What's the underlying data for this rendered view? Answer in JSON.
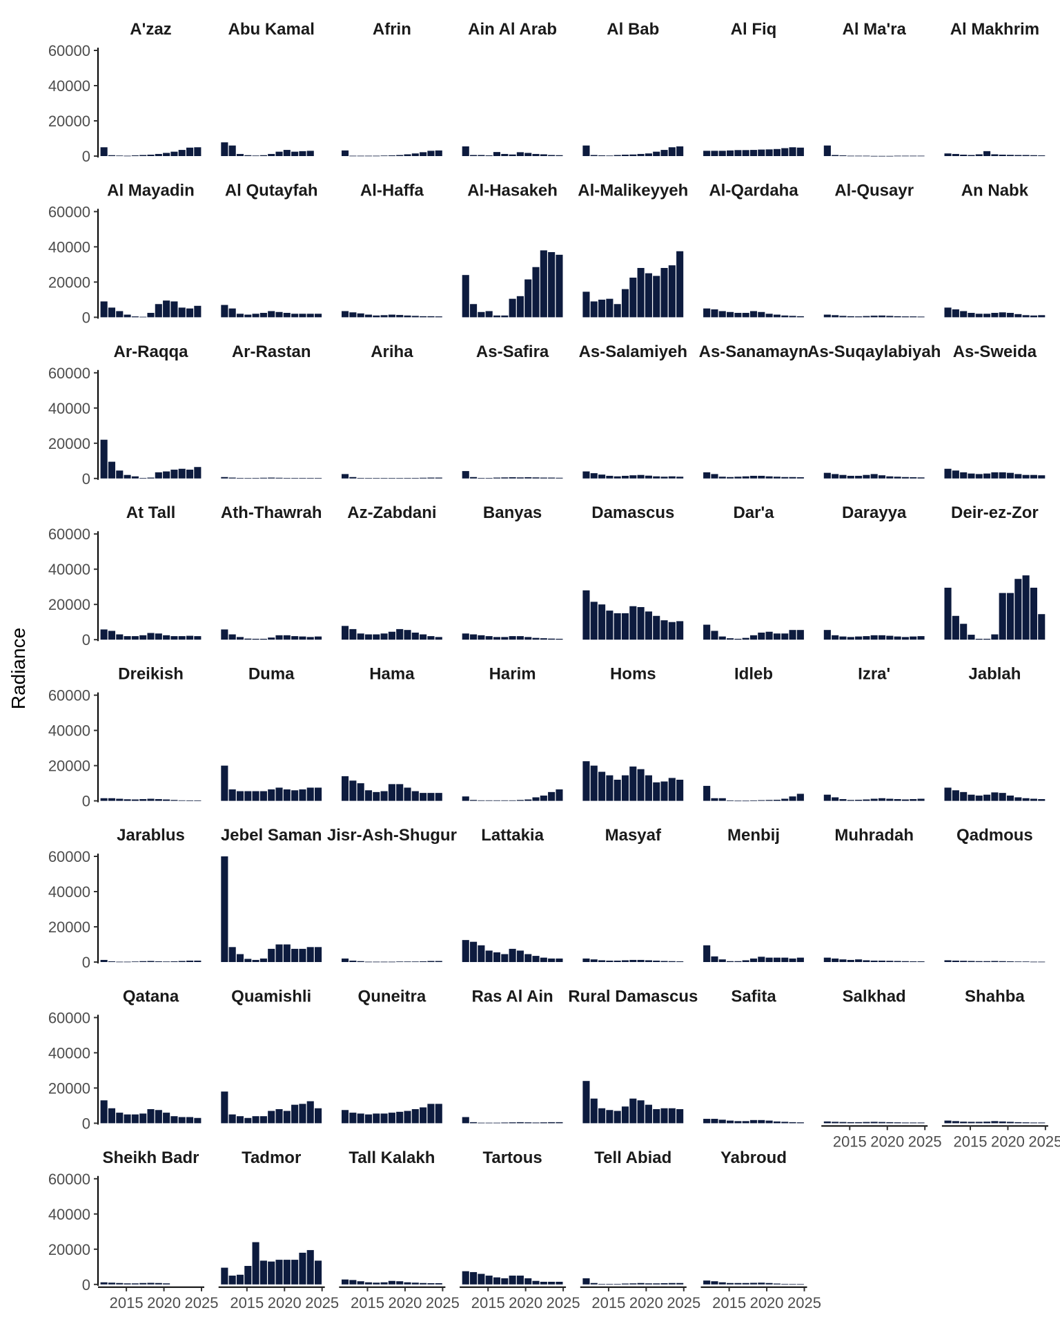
{
  "chart_data": {
    "type": "bar",
    "facet": "wrap",
    "ylabel": "Radiance",
    "xlabel": "",
    "ylim": [
      0,
      60000
    ],
    "y_ticks": [
      0,
      20000,
      40000,
      60000
    ],
    "y_tick_labels": [
      "0",
      "20000",
      "40000",
      "60000"
    ],
    "xlim": [
      2011.5,
      2025
    ],
    "x_ticks": [
      2015,
      2020,
      2025
    ],
    "x_tick_labels": [
      "2015",
      "2020",
      "2025"
    ],
    "years": [
      2012,
      2013,
      2014,
      2015,
      2016,
      2017,
      2018,
      2019,
      2020,
      2021,
      2022,
      2023,
      2024
    ],
    "bar_color": "#0d1b3e",
    "grid": false,
    "legend": "none",
    "panels": [
      {
        "name": "A'zaz",
        "values": [
          5000,
          500,
          300,
          200,
          400,
          600,
          800,
          1200,
          1800,
          2500,
          3500,
          4800,
          5000
        ]
      },
      {
        "name": "Abu Kamal",
        "values": [
          7800,
          6000,
          1200,
          500,
          300,
          500,
          1200,
          2500,
          3500,
          2500,
          2800,
          3000,
          0
        ]
      },
      {
        "name": "Afrin",
        "values": [
          3200,
          200,
          200,
          200,
          200,
          300,
          400,
          600,
          1000,
          1500,
          2200,
          3000,
          3200
        ]
      },
      {
        "name": "Ain Al Arab",
        "values": [
          5500,
          600,
          600,
          400,
          2300,
          1200,
          900,
          2200,
          1800,
          1200,
          1000,
          600,
          500
        ]
      },
      {
        "name": "Al Bab",
        "values": [
          6000,
          600,
          400,
          300,
          600,
          800,
          900,
          1200,
          1500,
          2500,
          3500,
          5000,
          5500
        ]
      },
      {
        "name": "Al Fiq",
        "values": [
          3000,
          3000,
          3000,
          3200,
          3400,
          3400,
          3500,
          3700,
          3800,
          4000,
          4500,
          5000,
          4800
        ]
      },
      {
        "name": "Al Ma'ra",
        "values": [
          6000,
          600,
          400,
          200,
          200,
          200,
          100,
          100,
          100,
          200,
          200,
          200,
          200
        ]
      },
      {
        "name": "Al Makhrim",
        "values": [
          1500,
          1200,
          800,
          600,
          1000,
          2800,
          1000,
          800,
          700,
          600,
          600,
          500,
          400
        ]
      },
      {
        "name": "Al Mayadin",
        "values": [
          9000,
          5500,
          3500,
          1500,
          500,
          300,
          2500,
          7500,
          9500,
          9000,
          5500,
          5000,
          6500
        ]
      },
      {
        "name": "Al Qutayfah",
        "values": [
          7000,
          5000,
          2000,
          1500,
          2000,
          2500,
          3500,
          3000,
          2500,
          2000,
          2000,
          2000,
          2000
        ]
      },
      {
        "name": "Al-Haffa",
        "values": [
          3500,
          2800,
          2200,
          1500,
          1000,
          1200,
          1500,
          1300,
          1000,
          800,
          600,
          600,
          500
        ]
      },
      {
        "name": "Al-Hasakeh",
        "values": [
          24000,
          7500,
          3000,
          3500,
          1000,
          1000,
          10500,
          12000,
          21500,
          28500,
          38000,
          37000,
          35500
        ]
      },
      {
        "name": "Al-Malikeyyeh",
        "values": [
          14500,
          9000,
          10000,
          10500,
          7500,
          16000,
          22500,
          28000,
          25000,
          23500,
          28000,
          29500,
          37500
        ]
      },
      {
        "name": "Al-Qardaha",
        "values": [
          5000,
          4500,
          3500,
          3000,
          2500,
          2500,
          3500,
          3000,
          2000,
          1500,
          1000,
          800,
          600
        ]
      },
      {
        "name": "Al-Qusayr",
        "values": [
          1500,
          1200,
          800,
          600,
          500,
          700,
          900,
          1000,
          800,
          600,
          500,
          500,
          400
        ]
      },
      {
        "name": "An Nabk",
        "values": [
          5500,
          4500,
          3500,
          2500,
          2000,
          2000,
          2500,
          2800,
          2500,
          1800,
          1200,
          1000,
          1200
        ]
      },
      {
        "name": "Ar-Raqqa",
        "values": [
          22000,
          9500,
          4500,
          2000,
          1200,
          300,
          500,
          3500,
          4000,
          5000,
          5500,
          5000,
          6500
        ]
      },
      {
        "name": "Ar-Rastan",
        "values": [
          800,
          500,
          300,
          200,
          300,
          400,
          500,
          400,
          300,
          300,
          300,
          300,
          300
        ]
      },
      {
        "name": "Ariha",
        "values": [
          2500,
          800,
          300,
          200,
          200,
          200,
          200,
          200,
          300,
          300,
          400,
          500,
          500
        ]
      },
      {
        "name": "As-Safira",
        "values": [
          4200,
          800,
          300,
          300,
          500,
          600,
          700,
          600,
          700,
          600,
          500,
          500,
          400
        ]
      },
      {
        "name": "As-Salamiyeh",
        "values": [
          4000,
          3000,
          2200,
          1500,
          1200,
          1500,
          1800,
          2000,
          1600,
          1200,
          1000,
          1200,
          1000
        ]
      },
      {
        "name": "As-Sanamayn",
        "values": [
          3500,
          2500,
          1000,
          800,
          1000,
          1200,
          1500,
          1500,
          1200,
          1000,
          800,
          800,
          700
        ]
      },
      {
        "name": "As-Suqaylabiyah",
        "values": [
          3200,
          2500,
          2000,
          1500,
          1500,
          2000,
          2500,
          1800,
          1200,
          1000,
          800,
          700,
          600
        ]
      },
      {
        "name": "As-Sweida",
        "values": [
          5500,
          4500,
          3500,
          2800,
          2500,
          2800,
          3500,
          3500,
          3200,
          2500,
          2000,
          2000,
          1800
        ]
      },
      {
        "name": "At Tall",
        "values": [
          5800,
          5000,
          3000,
          2000,
          2000,
          2500,
          3800,
          3500,
          2500,
          2000,
          2000,
          2200,
          2000
        ]
      },
      {
        "name": "Ath-Thawrah",
        "values": [
          5800,
          3000,
          1500,
          600,
          500,
          500,
          1200,
          2500,
          2500,
          2000,
          1800,
          1500,
          1800
        ]
      },
      {
        "name": "Az-Zabdani",
        "values": [
          7800,
          6000,
          3500,
          3000,
          3000,
          3500,
          4500,
          6000,
          5500,
          4000,
          3000,
          2000,
          1500
        ]
      },
      {
        "name": "Banyas",
        "values": [
          3500,
          3000,
          2500,
          2000,
          1500,
          1500,
          2000,
          2000,
          1500,
          1000,
          800,
          600,
          500
        ]
      },
      {
        "name": "Damascus",
        "values": [
          28000,
          21500,
          20000,
          16500,
          15000,
          15000,
          19000,
          18500,
          16000,
          13500,
          11000,
          10000,
          10500
        ]
      },
      {
        "name": "Dar'a",
        "values": [
          8500,
          5000,
          1800,
          800,
          500,
          1000,
          2500,
          4000,
          4500,
          3500,
          3500,
          5500,
          5500
        ]
      },
      {
        "name": "Darayya",
        "values": [
          5500,
          2500,
          1800,
          1500,
          1800,
          2000,
          2500,
          2500,
          2200,
          1800,
          1500,
          1800,
          2000
        ]
      },
      {
        "name": "Deir-ez-Zor",
        "values": [
          29500,
          13500,
          9000,
          2800,
          500,
          500,
          3000,
          26500,
          26500,
          34500,
          36500,
          29500,
          14500
        ]
      },
      {
        "name": "Dreikish",
        "values": [
          1500,
          1500,
          1200,
          900,
          800,
          1000,
          1200,
          1000,
          800,
          500,
          300,
          200,
          200
        ]
      },
      {
        "name": "Duma",
        "values": [
          20000,
          6500,
          5500,
          5500,
          5500,
          5500,
          6500,
          7500,
          6500,
          6000,
          6500,
          7500,
          7500
        ]
      },
      {
        "name": "Hama",
        "values": [
          14000,
          11500,
          10000,
          6000,
          5000,
          5500,
          9500,
          9500,
          7500,
          5500,
          4500,
          4500,
          4500
        ]
      },
      {
        "name": "Harim",
        "values": [
          2500,
          500,
          300,
          300,
          300,
          300,
          300,
          500,
          800,
          2000,
          3000,
          5000,
          6500
        ]
      },
      {
        "name": "Homs",
        "values": [
          22500,
          20000,
          16500,
          14500,
          12000,
          14500,
          19500,
          18000,
          14500,
          10500,
          11000,
          13000,
          12000
        ]
      },
      {
        "name": "Idleb",
        "values": [
          8500,
          1500,
          1500,
          200,
          100,
          100,
          200,
          400,
          500,
          600,
          1200,
          2500,
          4000
        ]
      },
      {
        "name": "Izra'",
        "values": [
          3500,
          2000,
          1000,
          500,
          600,
          800,
          1200,
          1500,
          1200,
          1000,
          800,
          1000,
          1200
        ]
      },
      {
        "name": "Jablah",
        "values": [
          7500,
          6000,
          5000,
          3500,
          3000,
          3500,
          4800,
          4500,
          3000,
          2000,
          1500,
          1200,
          1000
        ]
      },
      {
        "name": "Jarablus",
        "values": [
          1200,
          400,
          200,
          200,
          300,
          500,
          600,
          400,
          300,
          400,
          600,
          800,
          800
        ]
      },
      {
        "name": "Jebel Saman",
        "values": [
          60000,
          8500,
          4500,
          1800,
          1200,
          2000,
          7500,
          10000,
          10000,
          7500,
          7500,
          8500,
          8500
        ]
      },
      {
        "name": "Jisr-Ash-Shugur",
        "values": [
          2000,
          800,
          500,
          200,
          200,
          200,
          200,
          300,
          300,
          300,
          400,
          600,
          600
        ]
      },
      {
        "name": "Lattakia",
        "values": [
          12500,
          11500,
          9500,
          6500,
          5500,
          4500,
          7500,
          6500,
          4500,
          3500,
          2500,
          2000,
          2000
        ]
      },
      {
        "name": "Masyaf",
        "values": [
          2000,
          1500,
          1000,
          800,
          800,
          1000,
          1200,
          1200,
          1000,
          800,
          600,
          500,
          400
        ]
      },
      {
        "name": "Menbij",
        "values": [
          9500,
          3200,
          1500,
          500,
          500,
          1000,
          2000,
          3000,
          2500,
          2500,
          2500,
          2000,
          2500
        ]
      },
      {
        "name": "Muhradah",
        "values": [
          2500,
          2000,
          1500,
          1200,
          1500,
          1000,
          800,
          800,
          700,
          600,
          500,
          400,
          400
        ]
      },
      {
        "name": "Qadmous",
        "values": [
          1000,
          800,
          700,
          600,
          500,
          500,
          600,
          500,
          400,
          300,
          300,
          200,
          200
        ]
      },
      {
        "name": "Qatana",
        "values": [
          13000,
          8500,
          6000,
          5000,
          5000,
          5500,
          8000,
          7500,
          6000,
          4000,
          3500,
          3500,
          3000
        ]
      },
      {
        "name": "Quamishli",
        "values": [
          18000,
          5000,
          4000,
          3000,
          4000,
          4000,
          7000,
          8000,
          7000,
          10500,
          11000,
          12500,
          8500
        ]
      },
      {
        "name": "Quneitra",
        "values": [
          7500,
          6000,
          5500,
          5000,
          5500,
          5500,
          6000,
          6500,
          7000,
          8000,
          9000,
          11000,
          11000
        ]
      },
      {
        "name": "Ras Al Ain",
        "values": [
          3500,
          600,
          300,
          300,
          300,
          400,
          500,
          600,
          500,
          400,
          500,
          600,
          600
        ]
      },
      {
        "name": "Rural Damascus",
        "values": [
          24000,
          14000,
          8500,
          7500,
          7000,
          9500,
          14000,
          13000,
          10500,
          8000,
          8500,
          8500,
          8000
        ]
      },
      {
        "name": "Safita",
        "values": [
          2500,
          2500,
          2000,
          1500,
          1200,
          1200,
          1800,
          1800,
          1500,
          1000,
          800,
          600,
          500
        ]
      },
      {
        "name": "Salkhad",
        "values": [
          1000,
          800,
          700,
          600,
          600,
          700,
          800,
          700,
          600,
          500,
          400,
          400,
          400
        ]
      },
      {
        "name": "Shahba",
        "values": [
          1500,
          1200,
          900,
          800,
          800,
          900,
          1200,
          1000,
          800,
          600,
          500,
          400,
          400
        ]
      },
      {
        "name": "Sheikh Badr",
        "values": [
          1200,
          1000,
          800,
          600,
          600,
          800,
          900,
          800,
          600,
          0,
          0,
          0,
          0
        ]
      },
      {
        "name": "Tadmor",
        "values": [
          9500,
          5000,
          5500,
          10500,
          24000,
          13500,
          13000,
          14000,
          14000,
          14000,
          18000,
          19500,
          13500
        ]
      },
      {
        "name": "Tall Kalakh",
        "values": [
          2800,
          2500,
          1800,
          1200,
          1000,
          1200,
          2000,
          1800,
          1200,
          1000,
          800,
          700,
          700
        ]
      },
      {
        "name": "Tartous",
        "values": [
          7500,
          7000,
          6000,
          5000,
          4000,
          3500,
          5000,
          5000,
          3500,
          2000,
          1500,
          1500,
          1500
        ]
      },
      {
        "name": "Tell Abiad",
        "values": [
          3500,
          800,
          300,
          300,
          300,
          500,
          600,
          800,
          600,
          600,
          700,
          800,
          800
        ]
      },
      {
        "name": "Yabroud",
        "values": [
          2200,
          1800,
          1200,
          800,
          800,
          800,
          900,
          1000,
          800,
          500,
          300,
          200,
          200
        ]
      }
    ]
  }
}
